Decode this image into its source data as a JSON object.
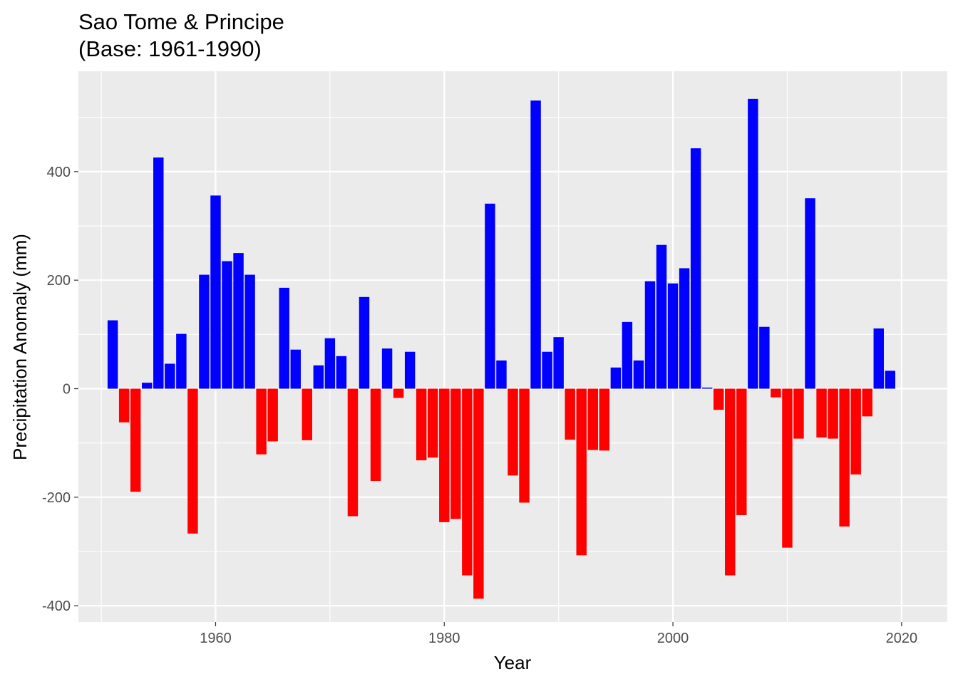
{
  "chart_data": {
    "type": "bar",
    "title": "Sao Tome & Principe",
    "subtitle": "(Base: 1961-1990)",
    "xlabel": "Year",
    "ylabel": "Precipitation Anomaly (mm)",
    "xlim": [
      1948,
      2024
    ],
    "ylim": [
      -430,
      585
    ],
    "x_ticks": [
      1960,
      1980,
      2000,
      2020
    ],
    "y_ticks": [
      -400,
      -200,
      0,
      200,
      400
    ],
    "grid": true,
    "legend": "none",
    "colors": {
      "positive": "#0000FF",
      "negative": "#FF0000",
      "panel": "#EBEBEB",
      "grid": "#FFFFFF"
    },
    "x": [
      1951,
      1952,
      1953,
      1954,
      1955,
      1956,
      1957,
      1958,
      1959,
      1960,
      1961,
      1962,
      1963,
      1964,
      1965,
      1966,
      1967,
      1968,
      1969,
      1970,
      1971,
      1972,
      1973,
      1974,
      1975,
      1976,
      1977,
      1978,
      1979,
      1980,
      1981,
      1982,
      1983,
      1984,
      1985,
      1986,
      1987,
      1988,
      1989,
      1990,
      1991,
      1992,
      1993,
      1994,
      1995,
      1996,
      1997,
      1998,
      1999,
      2000,
      2001,
      2002,
      2003,
      2004,
      2005,
      2006,
      2007,
      2008,
      2009,
      2010,
      2011,
      2012,
      2013,
      2014,
      2015,
      2016,
      2017,
      2018,
      2019
    ],
    "values": [
      126,
      -62,
      -190,
      11,
      426,
      46,
      101,
      -267,
      210,
      356,
      235,
      250,
      210,
      -121,
      -97,
      186,
      72,
      -95,
      43,
      93,
      60,
      -235,
      169,
      -170,
      74,
      -17,
      68,
      -132,
      -127,
      -246,
      -240,
      -344,
      -387,
      341,
      52,
      -160,
      -210,
      531,
      68,
      95,
      -94,
      -307,
      -113,
      -114,
      39,
      123,
      52,
      198,
      265,
      194,
      222,
      443,
      2,
      -39,
      -344,
      -233,
      534,
      114,
      -16,
      -293,
      -92,
      351,
      -90,
      -92,
      -254,
      -158,
      -51,
      111,
      33
    ]
  }
}
